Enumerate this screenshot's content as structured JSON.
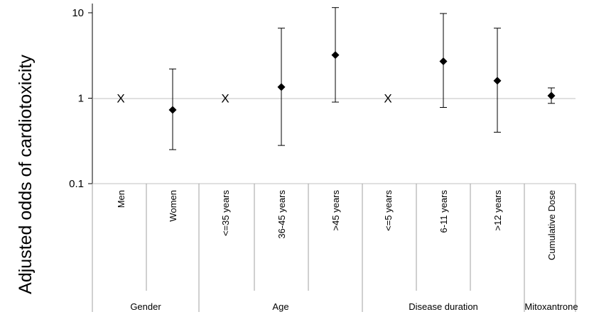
{
  "chart_data": {
    "type": "scatter",
    "title": "",
    "ylabel": "Adjusted odds of cardiotoxicity",
    "yscale": "log",
    "ylim": [
      0.1,
      10
    ],
    "yticks": [
      "10",
      "1",
      "0.1"
    ],
    "grid": false,
    "categories": [
      "Men",
      "Women",
      "<=35 years",
      "36-45 years",
      ">45 years",
      "<=5 years",
      "6-11 years",
      ">12 years",
      "Cumulative Dose"
    ],
    "groups": [
      "Gender",
      "Age",
      "Disease duration",
      "Mitoxantrone"
    ],
    "reference_marker": "X",
    "points": [
      {
        "category": "Men",
        "reference": true,
        "value": 1
      },
      {
        "category": "Women",
        "reference": false,
        "value": 0.73,
        "lower": 0.25,
        "upper": 2.2
      },
      {
        "category": "<=35 years",
        "reference": true,
        "value": 1
      },
      {
        "category": "36-45 years",
        "reference": false,
        "value": 1.35,
        "lower": 0.28,
        "upper": 6.6
      },
      {
        "category": ">45 years",
        "reference": false,
        "value": 3.2,
        "lower": 0.9,
        "upper": 11.5
      },
      {
        "category": "<=5 years",
        "reference": true,
        "value": 1
      },
      {
        "category": "6-11 years",
        "reference": false,
        "value": 2.7,
        "lower": 0.78,
        "upper": 9.8
      },
      {
        "category": ">12 years",
        "reference": false,
        "value": 1.6,
        "lower": 0.4,
        "upper": 6.6
      },
      {
        "category": "Cumulative Dose",
        "reference": false,
        "value": 1.07,
        "lower": 0.87,
        "upper": 1.32
      }
    ]
  }
}
